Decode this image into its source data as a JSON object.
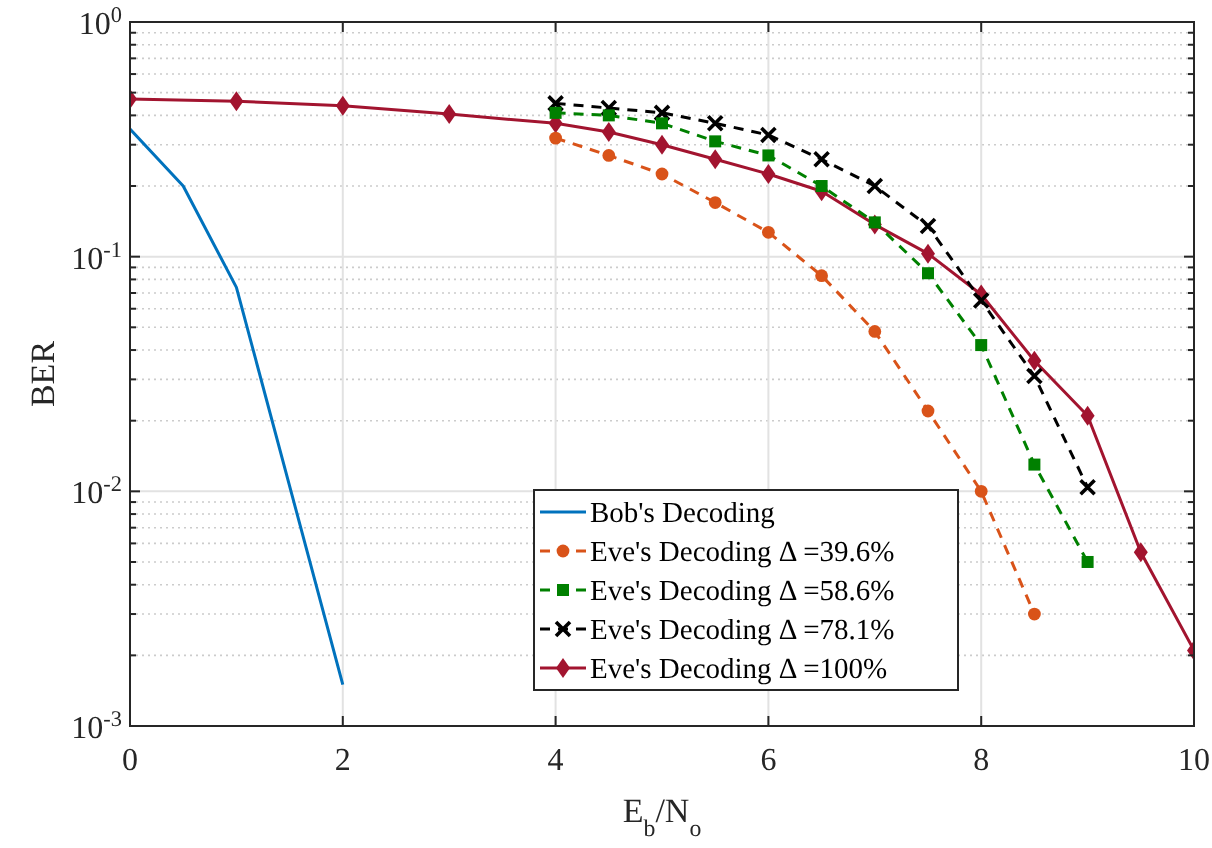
{
  "chart_data": {
    "type": "line",
    "xlabel": "E$_{b}$/N$_{o}$",
    "ylabel": "BER",
    "log": "y",
    "grid": true,
    "legend": "bottom right",
    "xlim": [
      0,
      10
    ],
    "xticks": [
      0,
      2,
      4,
      6,
      8,
      10
    ],
    "ylim": [
      0.001,
      1
    ],
    "yticks": [
      {
        "value": 0.001,
        "label": "10$^{-3}$"
      },
      {
        "value": 0.01,
        "label": "10$^{-2}$"
      },
      {
        "value": 0.1,
        "label": "10$^{-1}$"
      },
      {
        "value": 1,
        "label": "10$^{0}$"
      }
    ],
    "series": [
      {
        "name": "Bob's Decoding",
        "color": "#0072bd",
        "marker": "none",
        "line_style": "solid",
        "x": [
          0,
          0.5,
          1,
          2
        ],
        "values": [
          0.35,
          0.2,
          0.074,
          0.0015
        ]
      },
      {
        "name": "Eve's Decoding Δ =39.6%",
        "color": "#d95319",
        "marker": "circle",
        "line_style": "dashed",
        "x": [
          4,
          4.5,
          5,
          5.5,
          6,
          6.5,
          7,
          7.5,
          8,
          8.5
        ],
        "values": [
          0.32,
          0.27,
          0.225,
          0.17,
          0.127,
          0.083,
          0.048,
          0.022,
          0.01,
          0.003
        ]
      },
      {
        "name": "Eve's Decoding Δ =58.6%",
        "color": "#008000",
        "marker": "square",
        "line_style": "dashed",
        "x": [
          4,
          4.5,
          5,
          5.5,
          6,
          6.5,
          7,
          7.5,
          8,
          8.5,
          9
        ],
        "values": [
          0.41,
          0.4,
          0.37,
          0.31,
          0.27,
          0.2,
          0.14,
          0.085,
          0.042,
          0.013,
          0.005
        ]
      },
      {
        "name": "Eve's Decoding Δ =78.1%",
        "color": "#000000",
        "marker": "cross",
        "line_style": "dashed",
        "x": [
          4,
          4.5,
          5,
          5.5,
          6,
          6.5,
          7,
          7.5,
          8,
          8.5,
          9
        ],
        "values": [
          0.45,
          0.43,
          0.41,
          0.37,
          0.33,
          0.26,
          0.2,
          0.135,
          0.065,
          0.031,
          0.0104
        ]
      },
      {
        "name": "Eve's Decoding Δ =100%",
        "color": "#a2142f",
        "marker": "diamond",
        "line_style": "solid",
        "x": [
          0,
          1,
          2,
          3,
          4,
          4.5,
          5,
          5.5,
          6,
          6.5,
          7,
          7.5,
          8,
          8.5,
          9,
          9.5,
          10
        ],
        "values": [
          0.47,
          0.46,
          0.44,
          0.405,
          0.37,
          0.34,
          0.3,
          0.26,
          0.225,
          0.19,
          0.137,
          0.103,
          0.069,
          0.036,
          0.021,
          0.0055,
          0.0021
        ]
      }
    ]
  }
}
